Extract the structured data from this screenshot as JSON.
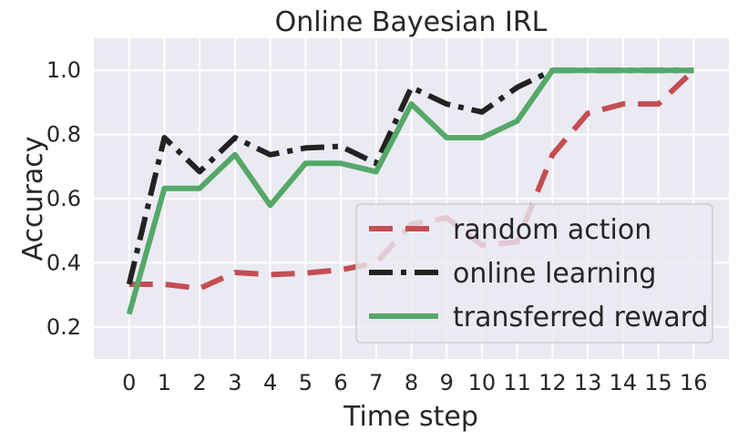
{
  "chart_data": {
    "type": "line",
    "title": "Online Bayesian IRL",
    "xlabel": "Time step",
    "ylabel": "Accuracy",
    "x": [
      0,
      1,
      2,
      3,
      4,
      5,
      6,
      7,
      8,
      9,
      10,
      11,
      12,
      13,
      14,
      15,
      16
    ],
    "xlim": [
      -1,
      17
    ],
    "ylim": [
      0.1,
      1.1
    ],
    "yticks": [
      "0.2",
      "0.4",
      "0.6",
      "0.8",
      "1.0"
    ],
    "yticks_values": [
      0.2,
      0.4,
      0.6,
      0.8,
      1.0
    ],
    "grid": true,
    "legend_position": "lower right",
    "series": [
      {
        "name": "random action",
        "style": "dashed",
        "color": "#c44e52",
        "values": [
          0.333,
          0.333,
          0.32,
          0.37,
          0.363,
          0.368,
          0.378,
          0.4,
          0.52,
          0.54,
          0.455,
          0.465,
          0.737,
          0.866,
          0.895,
          0.895,
          1.0
        ]
      },
      {
        "name": "online learning",
        "style": "dashdot",
        "color": "#222222",
        "values": [
          0.333,
          0.79,
          0.684,
          0.79,
          0.737,
          0.758,
          0.763,
          0.71,
          0.947,
          0.895,
          0.87,
          0.947,
          1.0,
          1.0,
          1.0,
          1.0,
          1.0
        ]
      },
      {
        "name": "transferred reward",
        "style": "solid",
        "color": "#55a868",
        "values": [
          0.24,
          0.632,
          0.632,
          0.737,
          0.579,
          0.71,
          0.71,
          0.684,
          0.895,
          0.79,
          0.79,
          0.842,
          1.0,
          1.0,
          1.0,
          1.0,
          1.0
        ]
      }
    ]
  },
  "colors": {
    "plot_background": "#eaeaf2",
    "grid": "#ffffff",
    "text": "#262626"
  }
}
